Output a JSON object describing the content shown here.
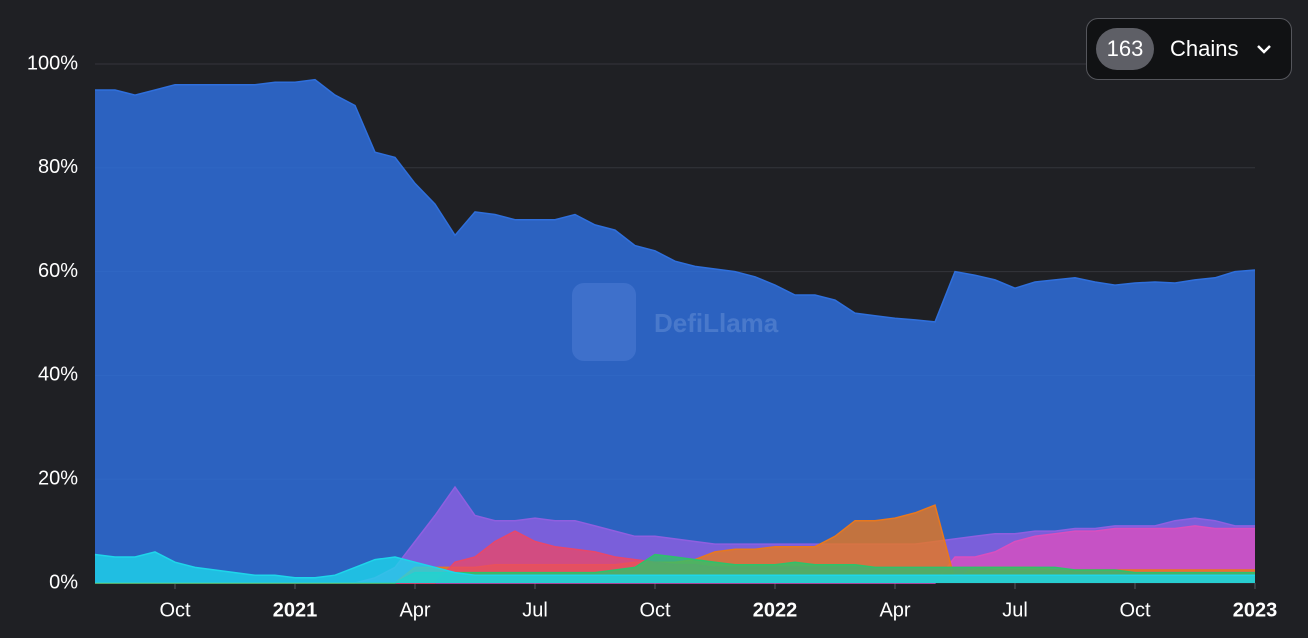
{
  "chart_data": {
    "type": "area",
    "watermark": "DefiLlama",
    "selector": {
      "count": "163",
      "label": "Chains"
    },
    "x": [
      0,
      0.5,
      1,
      1.5,
      2,
      2.5,
      3,
      3.5,
      4,
      4.5,
      5,
      5.5,
      6,
      6.5,
      7,
      7.5,
      8,
      8.5,
      9,
      9.5,
      10,
      10.5,
      11,
      11.5,
      12,
      12.5,
      13,
      13.5,
      14,
      14.5,
      15,
      15.5,
      16,
      16.5,
      17,
      17.5,
      18,
      18.5,
      19,
      19.5,
      20,
      20.5,
      21,
      21.5,
      22,
      22.5,
      23,
      23.5,
      24,
      24.5,
      25,
      25.5,
      26,
      26.5,
      27,
      27.5,
      28,
      28.5,
      29
    ],
    "xlim": [
      0,
      29
    ],
    "xticks": [
      {
        "value": 2,
        "label": "Oct"
      },
      {
        "value": 5,
        "label": "2021"
      },
      {
        "value": 8,
        "label": "Apr"
      },
      {
        "value": 11,
        "label": "Jul"
      },
      {
        "value": 14,
        "label": "Oct"
      },
      {
        "value": 17,
        "label": "2022"
      },
      {
        "value": 20,
        "label": "Apr"
      },
      {
        "value": 23,
        "label": "Jul"
      },
      {
        "value": 26,
        "label": "Oct"
      },
      {
        "value": 29,
        "label": "2023"
      }
    ],
    "ylim": [
      0,
      100
    ],
    "yticks": [
      {
        "value": 0,
        "label": "0%"
      },
      {
        "value": 20,
        "label": "20%"
      },
      {
        "value": 40,
        "label": "40%"
      },
      {
        "value": 60,
        "label": "60%"
      },
      {
        "value": 80,
        "label": "80%"
      },
      {
        "value": 100,
        "label": "100%"
      }
    ],
    "grid": true,
    "series": [
      {
        "color": "#2f6fdc",
        "values": [
          95,
          95,
          94,
          95,
          96,
          96,
          96,
          96,
          96,
          96.5,
          96.5,
          97,
          94,
          92,
          83,
          82,
          77,
          73,
          67,
          71.5,
          71,
          70,
          70,
          70,
          71,
          69,
          68,
          65,
          64,
          62,
          61,
          60.5,
          60,
          59,
          57.4,
          55.5,
          55.5,
          54.5,
          52,
          51.5,
          51,
          50.7,
          50.3,
          60,
          59.3,
          58.4,
          56.8,
          58,
          58.4,
          58.8,
          58,
          57.4,
          57.8,
          58,
          57.8,
          58.4,
          58.8,
          60,
          60.3
        ]
      },
      {
        "color": "#8f5fe0",
        "values": [
          0,
          0,
          0,
          0,
          0,
          0,
          0,
          0,
          0,
          0,
          0,
          0,
          0,
          0,
          1,
          3,
          8,
          13,
          18.5,
          13,
          12,
          12,
          12.5,
          12,
          12,
          11,
          10,
          9,
          9,
          8.5,
          8,
          7.5,
          7.5,
          7.5,
          7.5,
          7.5,
          7.5,
          7.5,
          7.5,
          7.5,
          7.5,
          7.5,
          8,
          8.5,
          9,
          9.5,
          9.5,
          10,
          10,
          10.5,
          10.5,
          11,
          11,
          11,
          12,
          12.5,
          12,
          11,
          11
        ]
      },
      {
        "color": "#d94fbf",
        "values": [
          0,
          0,
          0,
          0,
          0,
          0,
          0,
          0,
          0,
          0,
          0,
          0,
          0,
          0,
          0,
          0,
          0,
          0,
          0,
          0,
          0,
          0,
          0,
          0,
          0,
          0,
          0,
          0,
          0,
          0,
          0,
          0,
          0,
          0,
          0,
          0,
          0,
          0,
          0,
          0,
          0,
          0,
          0,
          5,
          5,
          6,
          8,
          9,
          9.5,
          10,
          10,
          10.5,
          10.5,
          10.5,
          10.5,
          11,
          10.5,
          10.5,
          10.5
        ]
      },
      {
        "color": "#e8781e",
        "values": [
          0,
          0,
          0,
          0,
          0,
          0,
          0,
          0,
          0,
          0,
          0,
          0,
          0,
          0,
          0,
          0,
          3,
          3,
          3,
          3,
          3.5,
          3.5,
          3.5,
          3.5,
          3.5,
          3.5,
          3.5,
          4,
          4,
          4,
          4.5,
          6,
          6.5,
          6.5,
          7,
          7,
          7,
          9,
          12,
          12,
          12.5,
          13.5,
          15,
          0.5,
          3,
          3,
          3,
          3,
          2.5,
          2.5,
          2.5,
          2.5,
          2.5,
          2.5,
          2.5,
          2.5,
          2.5,
          2.5,
          2.5
        ]
      },
      {
        "color": "#e8476a",
        "values": [
          0,
          0,
          0,
          0,
          0,
          0,
          0,
          0,
          0,
          0,
          0,
          0,
          0,
          0,
          0,
          0,
          0,
          0,
          4,
          5,
          8,
          10,
          8,
          7,
          6.5,
          6,
          5,
          4.5,
          4,
          3.5,
          3.5,
          3,
          3,
          3,
          3,
          3,
          3,
          3,
          3,
          3,
          3,
          3,
          3,
          3,
          3,
          2.5,
          2.5,
          2.5,
          2.5,
          2.5,
          2.5,
          2.5,
          2,
          2,
          2,
          2,
          2,
          2,
          2
        ]
      },
      {
        "color": "#2ec26a",
        "values": [
          0,
          0,
          0,
          0,
          0,
          0,
          0,
          0,
          0,
          0,
          0,
          0,
          0,
          0,
          0,
          0,
          2,
          2,
          2,
          2,
          2,
          2,
          2,
          2,
          2,
          2,
          2.5,
          3,
          5.5,
          5,
          4.5,
          4,
          3.5,
          3.5,
          3.5,
          4,
          3.5,
          3.5,
          3.5,
          3,
          3,
          3,
          3,
          3,
          3,
          3,
          3,
          3,
          3,
          2.5,
          2.5,
          2.5,
          2,
          2,
          2,
          2,
          2,
          2,
          2
        ]
      },
      {
        "color": "#1ed6ea",
        "values": [
          5.5,
          5,
          5,
          6,
          4,
          3,
          2.5,
          2,
          1.5,
          1.5,
          1,
          1,
          1.5,
          3,
          4.5,
          5,
          4,
          3,
          2,
          1.5,
          1.5,
          1.5,
          1.5,
          1.5,
          1.5,
          1.5,
          1.5,
          1.5,
          1.5,
          1.5,
          1.5,
          1.5,
          1.5,
          1.5,
          1.5,
          1.5,
          1.5,
          1.5,
          1.5,
          1.5,
          1.5,
          1.5,
          1.5,
          1.5,
          1.5,
          1.5,
          1.5,
          1.5,
          1.5,
          1.5,
          1.5,
          1.5,
          1.5,
          1.5,
          1.5,
          1.5,
          1.5,
          1.5,
          1.5
        ]
      }
    ]
  }
}
